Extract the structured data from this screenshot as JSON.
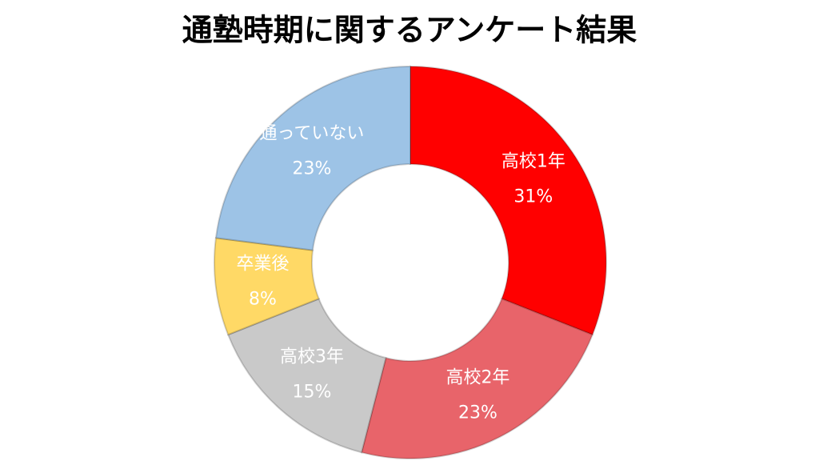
{
  "chart_data": {
    "type": "donut",
    "title": "通塾時期に関するアンケート結果",
    "categories": [
      "高校1年",
      "高校2年",
      "高校3年",
      "卒業後",
      "通っていない"
    ],
    "values": [
      31,
      23,
      15,
      8,
      23
    ],
    "value_labels": [
      "31%",
      "23%",
      "15%",
      "8%",
      "23%"
    ],
    "colors": [
      "#ff0000",
      "#e8646a",
      "#c9c9c9",
      "#ffd966",
      "#9dc3e6"
    ]
  }
}
